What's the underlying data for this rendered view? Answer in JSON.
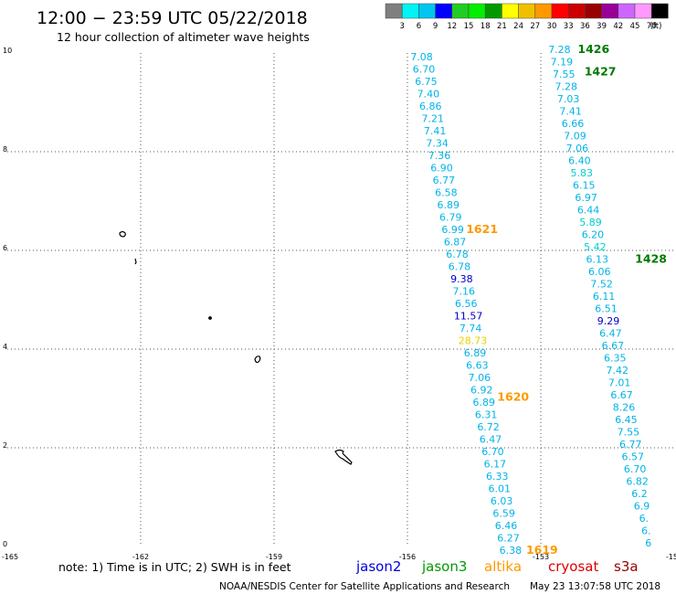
{
  "header": {
    "title": "12:00 − 23:59 UTC 05/22/2018",
    "subtitle": "12 hour collection of altimeter wave heights"
  },
  "colorbar": {
    "ticks": [
      "3",
      "6",
      "9",
      "12",
      "15",
      "18",
      "21",
      "24",
      "27",
      "30",
      "33",
      "36",
      "39",
      "42",
      "45",
      "70"
    ],
    "unit": "(ft)",
    "colors": [
      "#7f7f7f",
      "#00f4f4",
      "#00c6f0",
      "#0000ff",
      "#22cc22",
      "#00ee00",
      "#009a00",
      "#ffff00",
      "#f0c000",
      "#ff9900",
      "#ff0000",
      "#cc0000",
      "#990000",
      "#990099",
      "#cc66ff",
      "#ff99ff",
      "#000000"
    ]
  },
  "axes": {
    "x_ticks": [
      "-165",
      "-162",
      "-159",
      "-156",
      "-153",
      "-150"
    ],
    "y_ticks": [
      "0",
      "2",
      "4",
      "6",
      "8",
      "10"
    ],
    "xlim": [
      -165,
      -150
    ],
    "ylim": [
      0,
      10
    ]
  },
  "chart_data": {
    "type": "scatter",
    "xlim": [
      -165,
      -150
    ],
    "ylim": [
      0,
      10
    ],
    "grid": true,
    "series": [
      {
        "name": "west track",
        "points": [
          {
            "x": -155.68,
            "y": 9.85,
            "v": "7.08",
            "c": "cyan"
          },
          {
            "x": -155.63,
            "y": 9.6,
            "v": "6.70",
            "c": "cyan"
          },
          {
            "x": -155.58,
            "y": 9.35,
            "v": "6.75",
            "c": "cyan"
          },
          {
            "x": -155.53,
            "y": 9.1,
            "v": "7.40",
            "c": "cyan"
          },
          {
            "x": -155.48,
            "y": 8.85,
            "v": "6.86",
            "c": "cyan"
          },
          {
            "x": -155.43,
            "y": 8.6,
            "v": "7.21",
            "c": "cyan"
          },
          {
            "x": -155.38,
            "y": 8.35,
            "v": "7.41",
            "c": "cyan"
          },
          {
            "x": -155.33,
            "y": 8.1,
            "v": "7.34",
            "c": "cyan"
          },
          {
            "x": -155.28,
            "y": 7.85,
            "v": "7.36",
            "c": "cyan"
          },
          {
            "x": -155.23,
            "y": 7.6,
            "v": "6.90",
            "c": "cyan"
          },
          {
            "x": -155.18,
            "y": 7.35,
            "v": "6.77",
            "c": "cyan"
          },
          {
            "x": -155.13,
            "y": 7.1,
            "v": "6.58",
            "c": "cyan"
          },
          {
            "x": -155.08,
            "y": 6.85,
            "v": "6.89",
            "c": "cyan"
          },
          {
            "x": -155.03,
            "y": 6.6,
            "v": "6.79",
            "c": "cyan"
          },
          {
            "x": -154.98,
            "y": 6.35,
            "v": "6.99",
            "c": "cyan"
          },
          {
            "x": -154.93,
            "y": 6.1,
            "v": "6.87",
            "c": "cyan"
          },
          {
            "x": -154.88,
            "y": 5.85,
            "v": "6.78",
            "c": "cyan"
          },
          {
            "x": -154.83,
            "y": 5.6,
            "v": "6.78",
            "c": "cyan"
          },
          {
            "x": -154.78,
            "y": 5.35,
            "v": "9.38",
            "c": "blue"
          },
          {
            "x": -154.73,
            "y": 5.1,
            "v": "7.16",
            "c": "cyan"
          },
          {
            "x": -154.68,
            "y": 4.85,
            "v": "6.56",
            "c": "cyan"
          },
          {
            "x": -154.63,
            "y": 4.6,
            "v": "11.57",
            "c": "blue"
          },
          {
            "x": -154.58,
            "y": 4.35,
            "v": "7.74",
            "c": "cyan"
          },
          {
            "x": -154.53,
            "y": 4.1,
            "v": "28.73",
            "c": "yellow"
          },
          {
            "x": -154.48,
            "y": 3.85,
            "v": "6.89",
            "c": "cyan"
          },
          {
            "x": -154.43,
            "y": 3.6,
            "v": "6.63",
            "c": "cyan"
          },
          {
            "x": -154.38,
            "y": 3.35,
            "v": "7.06",
            "c": "cyan"
          },
          {
            "x": -154.33,
            "y": 3.1,
            "v": "6.92",
            "c": "cyan"
          },
          {
            "x": -154.28,
            "y": 2.85,
            "v": "6.89",
            "c": "cyan"
          },
          {
            "x": -154.23,
            "y": 2.6,
            "v": "6.31",
            "c": "cyan"
          },
          {
            "x": -154.18,
            "y": 2.35,
            "v": "6.72",
            "c": "cyan"
          },
          {
            "x": -154.13,
            "y": 2.1,
            "v": "6.47",
            "c": "cyan"
          },
          {
            "x": -154.08,
            "y": 1.85,
            "v": "6.70",
            "c": "cyan"
          },
          {
            "x": -154.03,
            "y": 1.6,
            "v": "6.17",
            "c": "cyan"
          },
          {
            "x": -153.98,
            "y": 1.35,
            "v": "6.33",
            "c": "cyan"
          },
          {
            "x": -153.93,
            "y": 1.1,
            "v": "6.01",
            "c": "cyan"
          },
          {
            "x": -153.88,
            "y": 0.85,
            "v": "6.03",
            "c": "cyan"
          },
          {
            "x": -153.83,
            "y": 0.6,
            "v": "6.59",
            "c": "cyan"
          },
          {
            "x": -153.78,
            "y": 0.35,
            "v": "6.46",
            "c": "cyan"
          },
          {
            "x": -153.73,
            "y": 0.1,
            "v": "6.27",
            "c": "cyan"
          },
          {
            "x": -153.68,
            "y": -0.15,
            "v": "6.38",
            "c": "cyan"
          }
        ]
      },
      {
        "name": "east track",
        "points": [
          {
            "x": -152.58,
            "y": 10.0,
            "v": "7.28",
            "c": "cyan"
          },
          {
            "x": -152.53,
            "y": 9.75,
            "v": "7.19",
            "c": "cyan"
          },
          {
            "x": -152.48,
            "y": 9.5,
            "v": "7.55",
            "c": "cyan"
          },
          {
            "x": -152.43,
            "y": 9.25,
            "v": "7.28",
            "c": "cyan"
          },
          {
            "x": -152.38,
            "y": 9.0,
            "v": "7.03",
            "c": "cyan"
          },
          {
            "x": -152.33,
            "y": 8.75,
            "v": "7.41",
            "c": "cyan"
          },
          {
            "x": -152.28,
            "y": 8.5,
            "v": "6.66",
            "c": "cyan"
          },
          {
            "x": -152.23,
            "y": 8.25,
            "v": "7.09",
            "c": "cyan"
          },
          {
            "x": -152.18,
            "y": 8.0,
            "v": "7.06",
            "c": "cyan"
          },
          {
            "x": -152.13,
            "y": 7.75,
            "v": "6.40",
            "c": "cyan"
          },
          {
            "x": -152.08,
            "y": 7.5,
            "v": "5.83",
            "c": "teal"
          },
          {
            "x": -152.03,
            "y": 7.25,
            "v": "6.15",
            "c": "cyan"
          },
          {
            "x": -151.98,
            "y": 7.0,
            "v": "6.97",
            "c": "cyan"
          },
          {
            "x": -151.93,
            "y": 6.75,
            "v": "6.44",
            "c": "cyan"
          },
          {
            "x": -151.88,
            "y": 6.5,
            "v": "5.89",
            "c": "teal"
          },
          {
            "x": -151.83,
            "y": 6.25,
            "v": "6.20",
            "c": "cyan"
          },
          {
            "x": -151.78,
            "y": 6.0,
            "v": "5.42",
            "c": "teal"
          },
          {
            "x": -151.73,
            "y": 5.75,
            "v": "6.13",
            "c": "cyan"
          },
          {
            "x": -151.68,
            "y": 5.5,
            "v": "6.06",
            "c": "cyan"
          },
          {
            "x": -151.63,
            "y": 5.25,
            "v": "7.52",
            "c": "cyan"
          },
          {
            "x": -151.58,
            "y": 5.0,
            "v": "6.11",
            "c": "cyan"
          },
          {
            "x": -151.53,
            "y": 4.75,
            "v": "6.51",
            "c": "cyan"
          },
          {
            "x": -151.48,
            "y": 4.5,
            "v": "9.29",
            "c": "blue"
          },
          {
            "x": -151.43,
            "y": 4.25,
            "v": "6.47",
            "c": "cyan"
          },
          {
            "x": -151.38,
            "y": 4.0,
            "v": "6.67",
            "c": "cyan"
          },
          {
            "x": -151.33,
            "y": 3.75,
            "v": "6.35",
            "c": "cyan"
          },
          {
            "x": -151.28,
            "y": 3.5,
            "v": "7.42",
            "c": "cyan"
          },
          {
            "x": -151.23,
            "y": 3.25,
            "v": "7.01",
            "c": "cyan"
          },
          {
            "x": -151.18,
            "y": 3.0,
            "v": "6.67",
            "c": "cyan"
          },
          {
            "x": -151.13,
            "y": 2.75,
            "v": "8.26",
            "c": "cyan"
          },
          {
            "x": -151.08,
            "y": 2.5,
            "v": "6.45",
            "c": "cyan"
          },
          {
            "x": -151.03,
            "y": 2.25,
            "v": "7.55",
            "c": "cyan"
          },
          {
            "x": -150.98,
            "y": 2.0,
            "v": "6.77",
            "c": "cyan"
          },
          {
            "x": -150.93,
            "y": 1.75,
            "v": "6.57",
            "c": "cyan"
          },
          {
            "x": -150.88,
            "y": 1.5,
            "v": "6.70",
            "c": "cyan"
          },
          {
            "x": -150.83,
            "y": 1.25,
            "v": "6.82",
            "c": "cyan"
          },
          {
            "x": -150.78,
            "y": 1.0,
            "v": "6.2",
            "c": "cyan"
          },
          {
            "x": -150.73,
            "y": 0.75,
            "v": "6.9",
            "c": "cyan"
          },
          {
            "x": -150.68,
            "y": 0.5,
            "v": "6.",
            "c": "cyan"
          },
          {
            "x": -150.63,
            "y": 0.25,
            "v": "6.",
            "c": "cyan"
          },
          {
            "x": -150.58,
            "y": 0.0,
            "v": "6",
            "c": "cyan"
          }
        ]
      }
    ],
    "time_labels": [
      {
        "text": "1426",
        "x": -152.17,
        "y": 10.0,
        "color": "green"
      },
      {
        "text": "1427",
        "x": -152.02,
        "y": 9.55,
        "color": "green"
      },
      {
        "text": "1428",
        "x": -150.88,
        "y": 5.75,
        "color": "green"
      },
      {
        "text": "1621",
        "x": -154.68,
        "y": 6.35,
        "color": "orange"
      },
      {
        "text": "1620",
        "x": -153.98,
        "y": 2.95,
        "color": "orange"
      },
      {
        "text": "1619",
        "x": -153.33,
        "y": -0.15,
        "color": "orange"
      }
    ]
  },
  "footer": {
    "note": "note:  1) Time is in UTC;  2) SWH is in feet",
    "satellites": [
      {
        "name": "jason2",
        "color": "#0000dd"
      },
      {
        "name": "jason3",
        "color": "#009a00"
      },
      {
        "name": "altika",
        "color": "#ff9900"
      },
      {
        "name": "cryosat",
        "color": "#dd0000"
      },
      {
        "name": "s3a",
        "color": "#990000"
      }
    ],
    "credit": "NOAA/NESDIS Center for Satellite Applications and Research",
    "timestamp": "May 23 13:07:58 UTC 2018"
  },
  "colors": {
    "cyan": "#00b4e6",
    "teal": "#00cfcf",
    "blue": "#0000cc",
    "yellow": "#e6d200",
    "green": "#007a00",
    "orange": "#ff9900"
  }
}
